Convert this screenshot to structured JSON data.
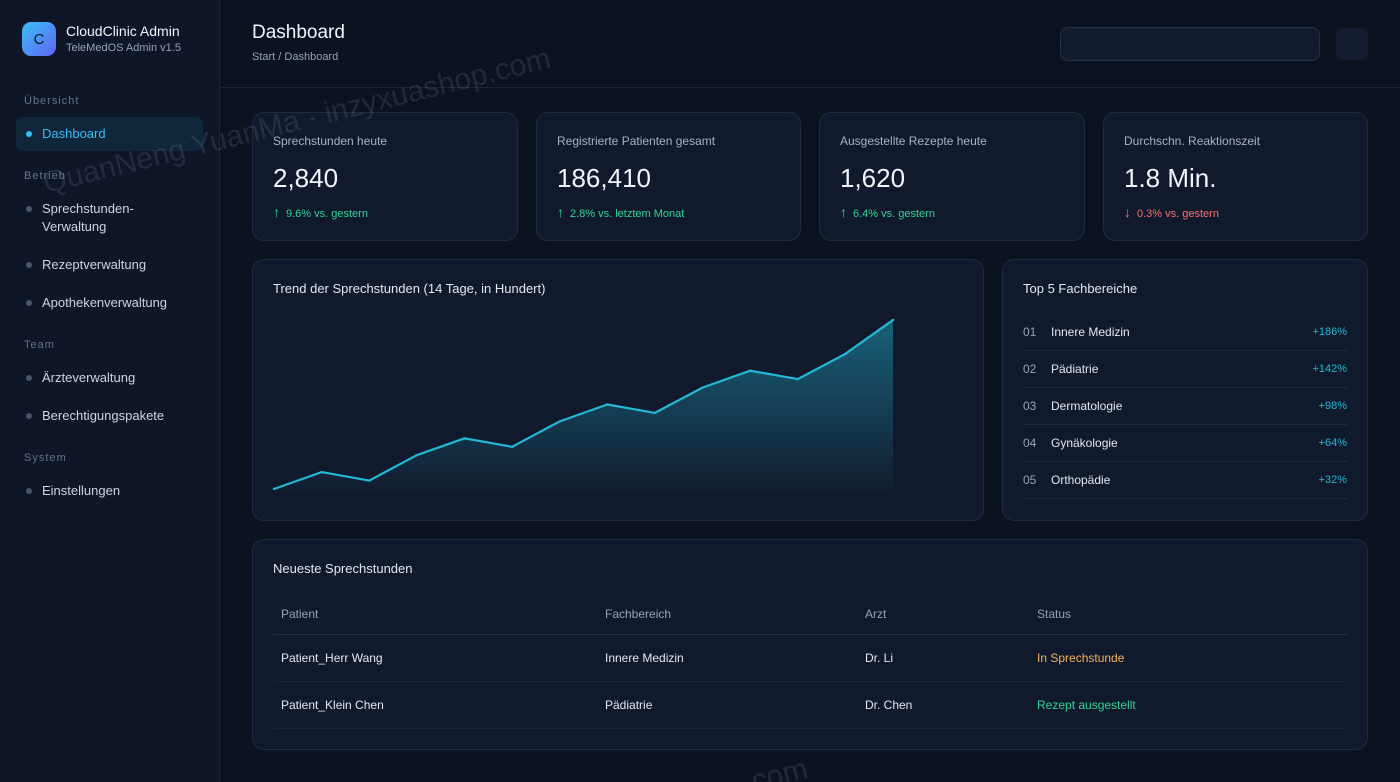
{
  "brand": {
    "logo_letter": "C",
    "title": "CloudClinic Admin",
    "subtitle": "TeleMedOS Admin v1.5"
  },
  "sidebar": {
    "sections": [
      {
        "label": "Übersicht",
        "items": [
          {
            "label": "Dashboard",
            "active": true
          }
        ]
      },
      {
        "label": "Betrieb",
        "items": [
          {
            "label": "Sprechstunden-Verwaltung"
          },
          {
            "label": "Rezeptverwaltung"
          },
          {
            "label": "Apothekenverwaltung"
          }
        ]
      },
      {
        "label": "Team",
        "items": [
          {
            "label": "Ärzteverwaltung"
          },
          {
            "label": "Berechtigungspakete"
          }
        ]
      },
      {
        "label": "System",
        "items": [
          {
            "label": "Einstellungen"
          }
        ]
      }
    ]
  },
  "header": {
    "title": "Dashboard",
    "breadcrumb": "Start / Dashboard"
  },
  "kpis": [
    {
      "label": "Sprechstunden heute",
      "value": "2,840",
      "arrow": "↑",
      "change": "9.6% vs. gestern",
      "trend": "up"
    },
    {
      "label": "Registrierte Patienten gesamt",
      "value": "186,410",
      "arrow": "↑",
      "change": "2.8% vs. letztem Monat",
      "trend": "up"
    },
    {
      "label": "Ausgestellte Rezepte heute",
      "value": "1,620",
      "arrow": "↑",
      "change": "6.4% vs. gestern",
      "trend": "up"
    },
    {
      "label": "Durchschn. Reaktionszeit",
      "value": "1.8 Min.",
      "arrow": "↓",
      "change": "0.3% vs. gestern",
      "trend": "down"
    }
  ],
  "trend_card": {
    "title": "Trend der Sprechstunden (14 Tage, in Hundert)"
  },
  "chart_data": {
    "type": "area",
    "title": "Trend der Sprechstunden (14 Tage, in Hundert)",
    "x": [
      1,
      2,
      3,
      4,
      5,
      6,
      7,
      8,
      9,
      10,
      11,
      12,
      13,
      14
    ],
    "series": [
      {
        "values": [
          2,
          4,
          3,
          6,
          8,
          7,
          10,
          12,
          11,
          14,
          16,
          15,
          18,
          22
        ]
      }
    ],
    "ylim": [
      2,
      22
    ],
    "grid": false,
    "color": "#22b8d6"
  },
  "top_card": {
    "title": "Top 5 Fachbereiche",
    "items": [
      {
        "rank": "01",
        "name": "Innere Medizin",
        "pct": "+186%"
      },
      {
        "rank": "02",
        "name": "Pädiatrie",
        "pct": "+142%"
      },
      {
        "rank": "03",
        "name": "Dermatologie",
        "pct": "+98%"
      },
      {
        "rank": "04",
        "name": "Gynäkologie",
        "pct": "+64%"
      },
      {
        "rank": "05",
        "name": "Orthopädie",
        "pct": "+32%"
      }
    ]
  },
  "table_card": {
    "title": "Neueste Sprechstunden",
    "columns": [
      "Patient",
      "Fachbereich",
      "Arzt",
      "Status"
    ],
    "rows": [
      {
        "patient": "Patient_Herr Wang",
        "dept": "Innere Medizin",
        "doctor": "Dr. Li",
        "status": "In Sprechstunde"
      },
      {
        "patient": "Patient_Klein Chen",
        "dept": "Pädiatrie",
        "doctor": "Dr. Chen",
        "status": "Rezept ausgestellt"
      }
    ]
  },
  "watermark": {
    "text": "QuanNeng YuanMa · inzyxuashop.com",
    "text2": ".com"
  }
}
